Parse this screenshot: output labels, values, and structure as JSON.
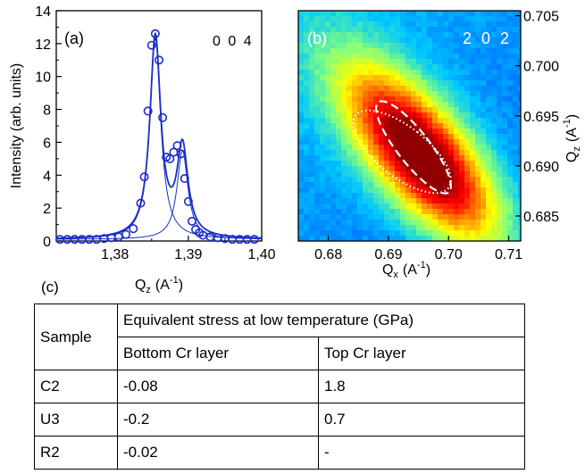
{
  "panel_a": {
    "label": "(a)",
    "reflection": "0 0 4",
    "ylabel": "Intensity (arb. units)",
    "xlabel_main": "Q",
    "xlabel_sub": "z",
    "xlabel_unit": "(A",
    "xlabel_exp": "-1",
    "xlabel_close": ")",
    "yticks": [
      "0",
      "2",
      "4",
      "6",
      "8",
      "10",
      "12",
      "14"
    ],
    "xticks": [
      "1,38",
      "1,39",
      "1,40"
    ]
  },
  "panel_b": {
    "label": "(b)",
    "reflection": "2 0 2",
    "xlabel_main": "Q",
    "xlabel_sub": "x",
    "xlabel_unit": "(A",
    "xlabel_exp": "-1",
    "xlabel_close": ")",
    "ylabel_main": "Q",
    "ylabel_sub": "z",
    "ylabel_unit": "(A",
    "ylabel_exp": "-1",
    "ylabel_close": ")",
    "xticks": [
      "0.68",
      "0.69",
      "0.70",
      "0.71"
    ],
    "yticks": [
      "0.685",
      "0.690",
      "0.695",
      "0.700",
      "0.705"
    ]
  },
  "panel_c": {
    "label": "(c)",
    "header_sample": "Sample",
    "header_group": "Equivalent stress at low temperature (GPa)",
    "header_bottom": "Bottom Cr layer",
    "header_top": "Top Cr layer",
    "rows": [
      {
        "sample": "C2",
        "bottom": "-0.08",
        "top": "1.8"
      },
      {
        "sample": "U3",
        "bottom": "-0.2",
        "top": "0.7"
      },
      {
        "sample": "R2",
        "bottom": "-0.02",
        "top": "-"
      }
    ]
  },
  "chart_data": [
    {
      "type": "scatter",
      "panel": "a",
      "xlim": [
        1.372,
        1.4
      ],
      "ylim": [
        0,
        14
      ],
      "color": "#1a2ec8",
      "peaks": [
        {
          "center": 1.3855,
          "amplitude": 12.2,
          "hwhm": 0.0009
        },
        {
          "center": 1.3892,
          "amplitude": 5.4,
          "hwhm": 0.0009
        }
      ],
      "x": [
        1.3725,
        1.3735,
        1.3745,
        1.3755,
        1.3765,
        1.3775,
        1.3785,
        1.3795,
        1.3805,
        1.3815,
        1.3825,
        1.3835,
        1.384,
        1.3845,
        1.385,
        1.3855,
        1.386,
        1.3865,
        1.387,
        1.3875,
        1.388,
        1.3885,
        1.389,
        1.3895,
        1.39,
        1.3905,
        1.391,
        1.3915,
        1.392,
        1.393,
        1.394,
        1.395,
        1.396,
        1.397,
        1.398,
        1.399
      ],
      "y": [
        0.1,
        0.1,
        0.1,
        0.1,
        0.1,
        0.1,
        0.15,
        0.2,
        0.25,
        0.4,
        0.75,
        2.3,
        3.9,
        7.9,
        11.9,
        12.6,
        11.0,
        7.5,
        5.1,
        5.0,
        5.4,
        5.8,
        5.3,
        3.8,
        2.4,
        1.2,
        0.7,
        0.5,
        0.35,
        0.25,
        0.2,
        0.15,
        0.1,
        0.1,
        0.1,
        0.1
      ]
    },
    {
      "type": "heatmap",
      "panel": "b",
      "xlim": [
        0.675,
        0.712
      ],
      "ylim": [
        0.6825,
        0.7055
      ],
      "peak": {
        "qx": 0.6955,
        "qz": 0.691
      },
      "colormap": [
        "#00008f",
        "#0050ff",
        "#00c8ff",
        "#80ff80",
        "#ffff00",
        "#ff8000",
        "#ff0000",
        "#900000"
      ]
    }
  ]
}
